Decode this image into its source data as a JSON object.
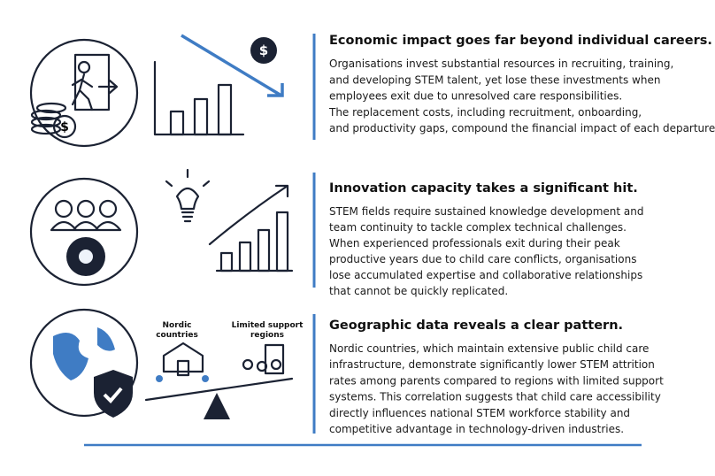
{
  "sections": [
    {
      "heading": "Economic impact goes far beyond individual careers.",
      "lines": [
        "Organisations invest substantial resources in recruiting, training,",
        "and developing STEM talent, yet lose these investments when",
        "employees exit due to unresolved care responsibilities.",
        "The replacement costs, including recruitment, onboarding,",
        "and productivity gaps, compound the financial impact of each departure."
      ]
    },
    {
      "heading": "Innovation capacity takes a significant hit.",
      "lines": [
        "STEM fields require sustained knowledge development and",
        "team continuity to tackle complex technical challenges.",
        "When experienced professionals exit during their peak",
        "productive years due to child care conflicts, organisations",
        "lose accumulated expertise and collaborative relationships",
        "that cannot be quickly replicated."
      ]
    },
    {
      "heading": "Geographic data reveals a clear pattern.",
      "lines": [
        "Nordic countries, which maintain extensive public child care",
        "infrastructure, demonstrate significantly lower STEM attrition",
        "rates among parents compared to regions with limited support",
        "systems. This correlation suggests that child care accessibility",
        "directly influences national STEM workforce stability and",
        "competitive advantage in technology-driven industries."
      ]
    }
  ],
  "icon_labels": {
    "nordic": [
      "Nordic",
      "countries"
    ],
    "limited": [
      "Limited support",
      "regions"
    ]
  },
  "dollar_sign": "$"
}
